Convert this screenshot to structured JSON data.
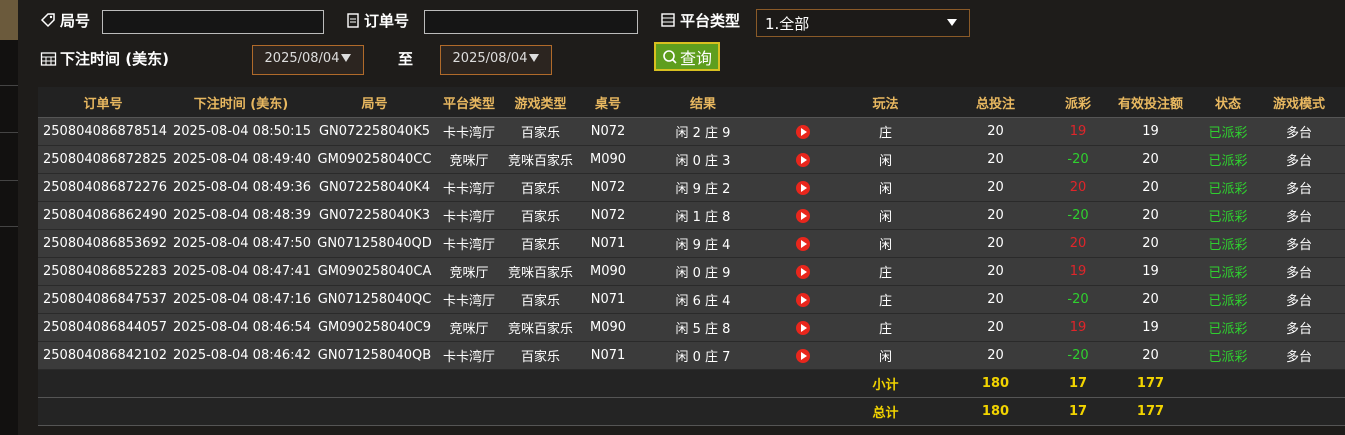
{
  "filters": {
    "round_label": "局号",
    "order_label": "订单号",
    "platform_label": "平台类型",
    "platform_value": "1.全部",
    "time_label": "下注时间 (美东)",
    "date_from": "2025/08/04",
    "to_label": "至",
    "date_to": "2025/08/04",
    "query_button": "查询"
  },
  "table": {
    "headers": [
      "订单号",
      "下注时间 (美东)",
      "局号",
      "平台类型",
      "游戏类型",
      "桌号",
      "结果",
      "玩法",
      "总投注",
      "派彩",
      "有效投注额",
      "状态",
      "游戏模式"
    ],
    "rows": [
      [
        "250804086878514",
        "2025-08-04 08:50:15",
        "GN072258040K5",
        "卡卡湾厅",
        "百家乐",
        "N072",
        "闲 2 庄 9",
        "庄",
        20,
        19,
        19,
        "已派彩",
        "多台"
      ],
      [
        "250804086872825",
        "2025-08-04 08:49:40",
        "GM090258040CC",
        "竞咪厅",
        "竞咪百家乐",
        "M090",
        "闲 0 庄 3",
        "闲",
        20,
        -20,
        20,
        "已派彩",
        "多台"
      ],
      [
        "250804086872276",
        "2025-08-04 08:49:36",
        "GN072258040K4",
        "卡卡湾厅",
        "百家乐",
        "N072",
        "闲 9 庄 2",
        "闲",
        20,
        20,
        20,
        "已派彩",
        "多台"
      ],
      [
        "250804086862490",
        "2025-08-04 08:48:39",
        "GN072258040K3",
        "卡卡湾厅",
        "百家乐",
        "N072",
        "闲 1 庄 8",
        "闲",
        20,
        -20,
        20,
        "已派彩",
        "多台"
      ],
      [
        "250804086853692",
        "2025-08-04 08:47:50",
        "GN071258040QD",
        "卡卡湾厅",
        "百家乐",
        "N071",
        "闲 9 庄 4",
        "闲",
        20,
        20,
        20,
        "已派彩",
        "多台"
      ],
      [
        "250804086852283",
        "2025-08-04 08:47:41",
        "GM090258040CA",
        "竞咪厅",
        "竞咪百家乐",
        "M090",
        "闲 0 庄 9",
        "庄",
        20,
        19,
        19,
        "已派彩",
        "多台"
      ],
      [
        "250804086847537",
        "2025-08-04 08:47:16",
        "GN071258040QC",
        "卡卡湾厅",
        "百家乐",
        "N071",
        "闲 6 庄 4",
        "庄",
        20,
        -20,
        20,
        "已派彩",
        "多台"
      ],
      [
        "250804086844057",
        "2025-08-04 08:46:54",
        "GM090258040C9",
        "竞咪厅",
        "竞咪百家乐",
        "M090",
        "闲 5 庄 8",
        "庄",
        20,
        19,
        19,
        "已派彩",
        "多台"
      ],
      [
        "250804086842102",
        "2025-08-04 08:46:42",
        "GN071258040QB",
        "卡卡湾厅",
        "百家乐",
        "N071",
        "闲 0 庄 7",
        "闲",
        20,
        -20,
        20,
        "已派彩",
        "多台"
      ]
    ],
    "summary": [
      {
        "label": "小计",
        "total_bet": 180,
        "payout": 17,
        "valid_bet": 177
      },
      {
        "label": "总计",
        "total_bet": 180,
        "payout": 17,
        "valid_bet": 177
      }
    ]
  }
}
